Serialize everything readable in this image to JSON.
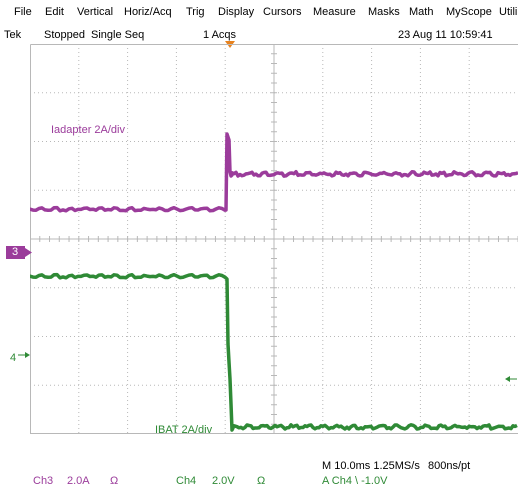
{
  "menu": {
    "items": [
      "File",
      "Edit",
      "Vertical",
      "Horiz/Acq",
      "Trig",
      "Display",
      "Cursors",
      "Measure",
      "Masks",
      "Math",
      "MyScope",
      "Utili"
    ]
  },
  "status": {
    "brand": "Tek",
    "run_state": "Stopped",
    "mode": "Single Seq",
    "acqs": "1 Acqs",
    "datetime": "23 Aug 11 10:59:41"
  },
  "channels": {
    "ch3": {
      "marker": "3",
      "label": "Iadapter 2A/div",
      "color": "#9b3c9b"
    },
    "ch4": {
      "marker": "4",
      "label": "IBAT 2A/div",
      "color": "#2f8a36"
    }
  },
  "readout": {
    "ch3_name": "Ch3",
    "ch3_scale": "2.0A",
    "ch3_coupling": "Ω",
    "ch4_name": "Ch4",
    "ch4_scale": "2.0V",
    "ch4_coupling": "Ω",
    "timebase": "M 10.0ms 1.25MS/s",
    "resolution": "800ns/pt",
    "trigger": "A  Ch4  \\  -1.0V"
  },
  "colors": {
    "grid": "#b8b8b8",
    "trigger_marker": "#e8821e"
  }
}
